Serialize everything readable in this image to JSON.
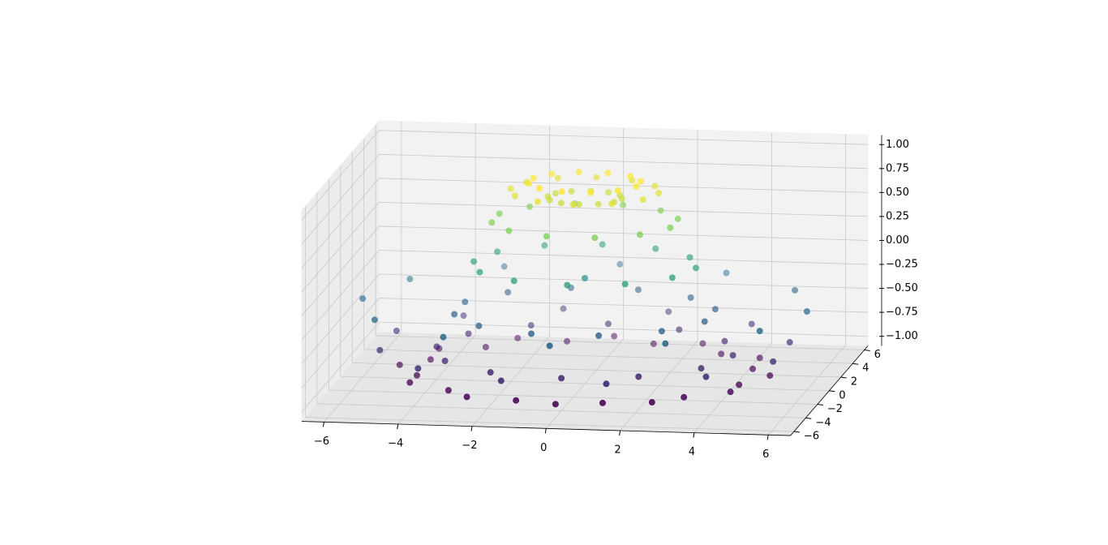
{
  "chart_data": {
    "type": "scatter3d",
    "colormap": "viridis",
    "depthshade": true,
    "xlim": [
      -6.6,
      6.6
    ],
    "ylim": [
      -6.6,
      6.6
    ],
    "zlim": [
      -1.1,
      1.1
    ],
    "xticks": [
      {
        "value": -6,
        "label": "−6"
      },
      {
        "value": -4,
        "label": "−4"
      },
      {
        "value": -2,
        "label": "−2"
      },
      0,
      2,
      4,
      6
    ],
    "yticks": [
      {
        "value": -6,
        "label": "−6"
      },
      {
        "value": -4,
        "label": "−4"
      },
      {
        "value": -2,
        "label": "−2"
      },
      0,
      2,
      4,
      6
    ],
    "zticks": [
      {
        "value": -1,
        "label": "−1.00"
      },
      {
        "value": -0.75,
        "label": "−0.75"
      },
      {
        "value": -0.5,
        "label": "−0.50"
      },
      {
        "value": -0.25,
        "label": "−0.25"
      },
      {
        "value": 0,
        "label": "0.00"
      },
      {
        "value": 0.25,
        "label": "0.25"
      },
      {
        "value": 0.5,
        "label": "0.50"
      },
      {
        "value": 0.75,
        "label": "0.75"
      },
      {
        "value": 1,
        "label": "1.00"
      }
    ],
    "grid": true,
    "x": [
      0,
      1,
      0.87,
      0.5,
      0,
      -0.5,
      -0.87,
      -1,
      -0.87,
      -0.5,
      0,
      0.5,
      0.87,
      1.45,
      1.06,
      0.39,
      -0.39,
      -1.06,
      -1.45,
      -1.45,
      -1.06,
      -0.39,
      0.39,
      1.06,
      1.45,
      2,
      1.73,
      1,
      0,
      -1,
      -1.73,
      -2,
      -1.73,
      -1,
      0,
      1,
      1.73,
      2.41,
      1.77,
      0.65,
      -0.65,
      -1.77,
      -2.41,
      -2.41,
      -1.77,
      -0.65,
      0.65,
      1.77,
      2.41,
      3,
      2.6,
      1.5,
      0,
      -1.5,
      -2.6,
      -3,
      -2.6,
      -1.5,
      0,
      1.5,
      2.6,
      3.38,
      2.47,
      0.91,
      -0.91,
      -2.47,
      -3.38,
      -3.38,
      -2.47,
      -0.91,
      0.91,
      2.47,
      3.38,
      4,
      3.46,
      2,
      0,
      -2,
      -3.46,
      -4,
      -3.46,
      -2,
      0,
      2,
      3.46,
      4.35,
      3.18,
      1.17,
      -1.17,
      -3.18,
      -4.35,
      -4.35,
      -3.18,
      -1.17,
      1.17,
      3.18,
      4.35,
      5,
      4.33,
      2.5,
      0,
      -2.5,
      -4.33,
      -5,
      -4.33,
      -2.5,
      0,
      2.5,
      4.33,
      5.31,
      3.89,
      1.42,
      -1.42,
      -3.89,
      -5.31,
      -5.31,
      -3.89,
      -1.42,
      1.42,
      3.89,
      5.31,
      6,
      5.2,
      3,
      0,
      -3,
      -5.2,
      -6,
      -5.2,
      -3,
      0,
      3,
      5.2
    ],
    "y": [
      0,
      0,
      0.5,
      0.87,
      1,
      0.87,
      0.5,
      0,
      -0.5,
      -0.87,
      -1,
      -0.87,
      -0.5,
      0.39,
      1.06,
      1.45,
      1.45,
      1.06,
      0.39,
      -0.39,
      -1.06,
      -1.45,
      -1.45,
      -1.06,
      -0.39,
      0,
      1,
      1.73,
      2,
      1.73,
      1,
      0,
      -1,
      -1.73,
      -2,
      -1.73,
      -1,
      0.65,
      1.77,
      2.41,
      2.41,
      1.77,
      0.65,
      -0.65,
      -1.77,
      -2.41,
      -2.41,
      -1.77,
      -0.65,
      0,
      1.5,
      2.6,
      3,
      2.6,
      1.5,
      0,
      -1.5,
      -2.6,
      -3,
      -2.6,
      -1.5,
      0.91,
      2.47,
      3.38,
      3.38,
      2.47,
      0.91,
      -0.91,
      -2.47,
      -3.38,
      -3.38,
      -2.47,
      -0.91,
      0,
      2,
      3.46,
      4,
      3.46,
      2,
      0,
      -2,
      -3.46,
      -4,
      -3.46,
      -2,
      1.17,
      3.18,
      4.35,
      4.35,
      3.18,
      1.17,
      -1.17,
      -3.18,
      -4.35,
      -4.35,
      -3.18,
      -1.17,
      0,
      2.5,
      4.33,
      5,
      4.33,
      2.5,
      0,
      -2.5,
      -4.33,
      -5,
      -4.33,
      -2.5,
      1.42,
      3.89,
      5.31,
      5.31,
      3.89,
      1.42,
      -1.42,
      -3.89,
      -5.31,
      -5.31,
      -3.89,
      -1.42,
      0,
      3,
      5.2,
      6,
      5.2,
      3,
      0,
      -3,
      -5.2,
      -6,
      -5.2,
      -3
    ],
    "z": [
      0,
      0.84,
      0.84,
      0.84,
      0.84,
      0.84,
      0.84,
      0.84,
      0.84,
      0.84,
      0.84,
      0.84,
      0.84,
      1.0,
      1.0,
      1.0,
      1.0,
      1.0,
      1.0,
      1.0,
      1.0,
      1.0,
      1.0,
      1.0,
      1.0,
      0.91,
      0.91,
      0.91,
      0.91,
      0.91,
      0.91,
      0.91,
      0.91,
      0.91,
      0.91,
      0.91,
      0.91,
      0.6,
      0.6,
      0.6,
      0.6,
      0.6,
      0.6,
      0.6,
      0.6,
      0.6,
      0.6,
      0.6,
      0.6,
      0.14,
      0.14,
      0.14,
      0.14,
      0.14,
      0.14,
      0.14,
      0.14,
      0.14,
      0.14,
      0.14,
      0.14,
      -0.35,
      -0.35,
      -0.35,
      -0.35,
      -0.35,
      -0.35,
      -0.35,
      -0.35,
      -0.35,
      -0.35,
      -0.35,
      -0.35,
      -0.76,
      -0.76,
      -0.76,
      -0.76,
      -0.76,
      -0.76,
      -0.76,
      -0.76,
      -0.76,
      -0.76,
      -0.76,
      -0.76,
      -0.98,
      -0.98,
      -0.98,
      -0.98,
      -0.98,
      -0.98,
      -0.98,
      -0.98,
      -0.98,
      -0.98,
      -0.98,
      -0.98,
      -0.96,
      -0.96,
      -0.96,
      -0.96,
      -0.96,
      -0.96,
      -0.96,
      -0.96,
      -0.96,
      -0.96,
      -0.96,
      -0.96,
      -0.71,
      -0.71,
      -0.71,
      -0.71,
      -0.71,
      -0.71,
      -0.71,
      -0.71,
      -0.71,
      -0.71,
      -0.71,
      -0.71,
      -0.28,
      -0.28,
      -0.28,
      -0.28,
      -0.28,
      -0.28,
      -0.28,
      -0.28,
      -0.28,
      -0.28,
      -0.28,
      -0.28
    ]
  }
}
